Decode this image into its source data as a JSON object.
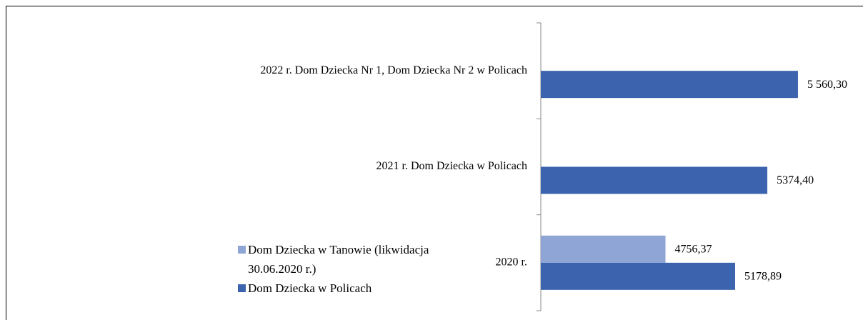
{
  "chart_data": {
    "type": "barh",
    "categories": [
      "2020 r.",
      "2021 r. Dom Dziecka w Policach",
      "2022 r. Dom Dziecka Nr 1, Dom Dziecka Nr 2 w Policach"
    ],
    "series": [
      {
        "name": "Dom Dziecka w Tanowie (likwidacja 30.06.2020 r.)",
        "color": "#8ea5d5",
        "values": [
          4756.37,
          null,
          null
        ],
        "value_labels": [
          "4756,37",
          null,
          null
        ]
      },
      {
        "name": "Dom Dziecka w Policach",
        "color": "#3c64ae",
        "values": [
          5178.89,
          5374.4,
          5560.3
        ],
        "value_labels": [
          "5178,89",
          "5374,40",
          "5 560,30"
        ]
      }
    ],
    "xlim": [
      4000,
      6000
    ],
    "legend": "left"
  }
}
